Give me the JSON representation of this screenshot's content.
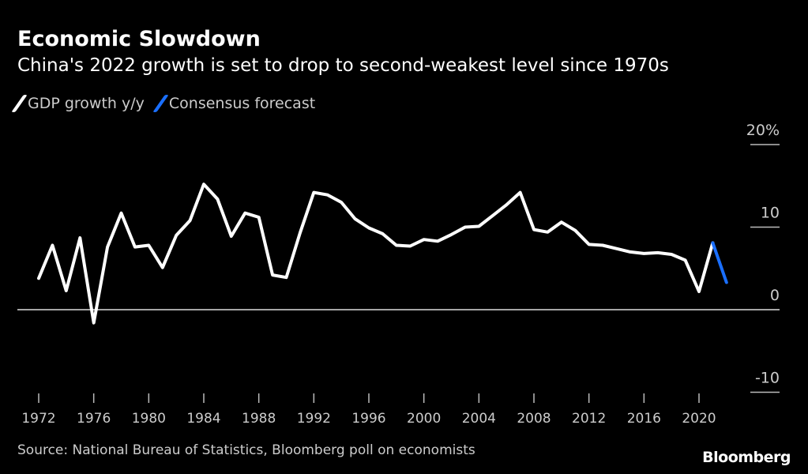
{
  "header": {
    "title": "Economic Slowdown",
    "subtitle": "China's 2022 growth is set to drop to second-weakest level since 1970s"
  },
  "footer": {
    "source": "Source: National Bureau of Statistics, Bloomberg poll on economists",
    "logo": "Bloomberg"
  },
  "chart_data": {
    "type": "line",
    "title": "Economic Slowdown",
    "subtitle": "China's 2022 growth is set to drop to second-weakest level since 1970s",
    "xlabel": "",
    "ylabel": "",
    "ylim": [
      -10,
      20
    ],
    "yticks": [
      {
        "value": 20,
        "label": "20%"
      },
      {
        "value": 10,
        "label": "10"
      },
      {
        "value": 0,
        "label": "0"
      },
      {
        "value": -10,
        "label": "-10"
      }
    ],
    "xticks": [
      1972,
      1976,
      1980,
      1984,
      1988,
      1992,
      1996,
      2000,
      2004,
      2008,
      2012,
      2016,
      2020
    ],
    "xlim": [
      1972,
      2022
    ],
    "legend_placement": "top-left",
    "series": [
      {
        "name": "GDP growth y/y",
        "color": "#ffffff",
        "x": [
          1972,
          1973,
          1974,
          1975,
          1976,
          1977,
          1978,
          1979,
          1980,
          1981,
          1982,
          1983,
          1984,
          1985,
          1986,
          1987,
          1988,
          1989,
          1990,
          1991,
          1992,
          1993,
          1994,
          1995,
          1996,
          1997,
          1998,
          1999,
          2000,
          2001,
          2002,
          2003,
          2004,
          2005,
          2006,
          2007,
          2008,
          2009,
          2010,
          2011,
          2012,
          2013,
          2014,
          2015,
          2016,
          2017,
          2018,
          2019,
          2020,
          2021
        ],
        "values": [
          3.8,
          7.8,
          2.3,
          8.7,
          -1.6,
          7.6,
          11.7,
          7.6,
          7.8,
          5.1,
          9.0,
          10.8,
          15.2,
          13.4,
          8.9,
          11.7,
          11.2,
          4.2,
          3.9,
          9.3,
          14.2,
          13.9,
          13.0,
          11.0,
          9.9,
          9.2,
          7.8,
          7.7,
          8.5,
          8.3,
          9.1,
          10.0,
          10.1,
          11.4,
          12.7,
          14.2,
          9.7,
          9.4,
          10.6,
          9.6,
          7.9,
          7.8,
          7.4,
          7.0,
          6.8,
          6.9,
          6.7,
          6.0,
          2.2,
          8.1
        ]
      },
      {
        "name": "Consensus forecast",
        "color": "#1a6fff",
        "x": [
          2021,
          2022
        ],
        "values": [
          8.1,
          3.3
        ]
      }
    ]
  }
}
